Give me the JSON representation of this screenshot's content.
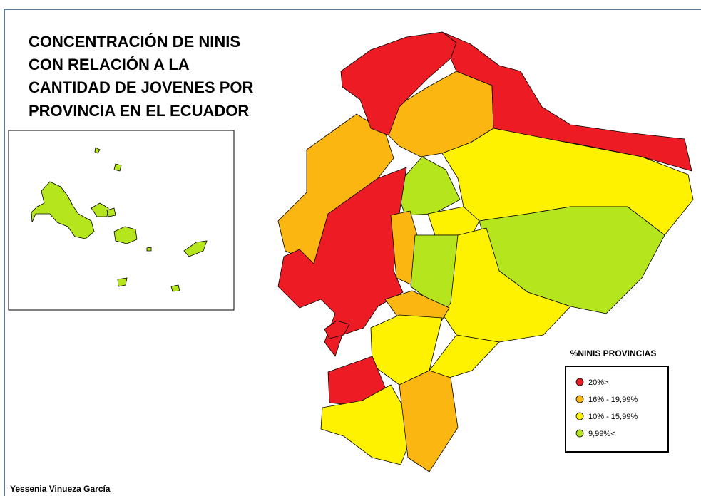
{
  "title_lines": [
    "CONCENTRACIÓN DE NINIS",
    "CON RELACIÓN A LA",
    "CANTIDAD DE JOVENES POR",
    "PROVINCIA EN EL ECUADOR"
  ],
  "legend": {
    "title": "%NINIS PROVINCIAS",
    "items": [
      {
        "label": "20%>",
        "color": "#ed1c24"
      },
      {
        "label": "16% - 19,99%",
        "color": "#fbb611"
      },
      {
        "label": "10% - 15,99%",
        "color": "#fff200"
      },
      {
        "label": "9,99%<",
        "color": "#b5e61d"
      }
    ]
  },
  "author": "Yessenia Vinueza García"
}
